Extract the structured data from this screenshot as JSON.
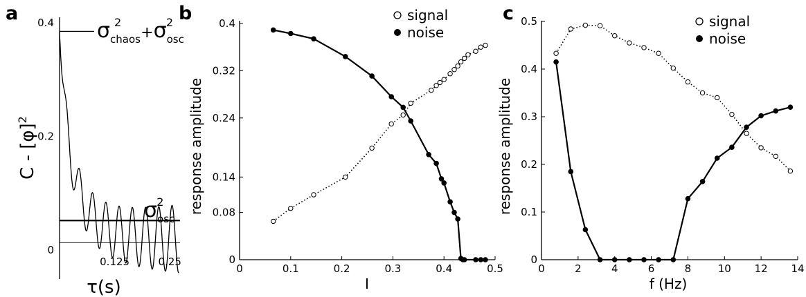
{
  "chart_data": [
    {
      "type": "line",
      "panel": "a",
      "ylabel": "C - [φ]",
      "ylabel_sup": "2",
      "xlabel": "τ(s)",
      "xlim": [
        0,
        0.27
      ],
      "ylim": [
        -0.06,
        0.4
      ],
      "xticks": [
        0.125,
        0.25
      ],
      "xtick_labels": [
        "0.125",
        "0.25"
      ],
      "yticks": [
        0,
        0.2,
        0.4
      ],
      "ytick_labels": [
        "0",
        "0.2",
        "0.4"
      ],
      "annotations": {
        "top": {
          "sigma": "σ",
          "sub1": "chaos",
          "sup1": "2",
          "plus": "+",
          "sub2": "osc",
          "sup2": "2"
        },
        "bottom": {
          "sigma": "σ",
          "sub": "osc",
          "sup": "2"
        }
      },
      "ref_lines": [
        0.385,
        0.052,
        0.013
      ],
      "trace": {
        "start": 0.385,
        "asymptote": 0.013,
        "decay_amplitude": 0.18,
        "decay_tau_s": 0.05,
        "osc_amplitude": 0.06,
        "osc_period_s": 0.03,
        "x_end": 0.27
      }
    },
    {
      "type": "line",
      "panel": "b",
      "xlabel": "I",
      "ylabel": "response amplitude",
      "xlim": [
        0,
        0.5
      ],
      "ylim": [
        0,
        0.4
      ],
      "xticks": [
        0,
        0.1,
        0.2,
        0.3,
        0.4,
        0.5
      ],
      "xtick_labels": [
        "0",
        "0.1",
        "0.2",
        "0.3",
        "0.4",
        "0.5"
      ],
      "yticks": [
        0,
        0.08,
        0.14,
        0.24,
        0.32,
        0.4
      ],
      "ytick_labels": [
        "0",
        "0.08",
        "0.14",
        "0.24",
        "0.32",
        "0.4"
      ],
      "legend": [
        "signal",
        "noise"
      ],
      "legend_position": "top-right",
      "series": [
        {
          "name": "signal",
          "style": "dotted",
          "marker": "open",
          "x": [
            0.066,
            0.1,
            0.145,
            0.207,
            0.259,
            0.297,
            0.32,
            0.335,
            0.375,
            0.385,
            0.392,
            0.4,
            0.412,
            0.42,
            0.427,
            0.433,
            0.44,
            0.447,
            0.462,
            0.472,
            0.481
          ],
          "y": [
            0.065,
            0.087,
            0.11,
            0.14,
            0.189,
            0.23,
            0.245,
            0.265,
            0.287,
            0.295,
            0.3,
            0.305,
            0.315,
            0.322,
            0.328,
            0.335,
            0.341,
            0.347,
            0.353,
            0.36,
            0.363
          ]
        },
        {
          "name": "noise",
          "style": "solid",
          "marker": "filled",
          "x": [
            0.066,
            0.1,
            0.145,
            0.207,
            0.259,
            0.297,
            0.32,
            0.335,
            0.37,
            0.385,
            0.395,
            0.4,
            0.412,
            0.42,
            0.427,
            0.433,
            0.437,
            0.44,
            0.462,
            0.472,
            0.481
          ],
          "y": [
            0.389,
            0.383,
            0.374,
            0.344,
            0.311,
            0.276,
            0.258,
            0.235,
            0.178,
            0.163,
            0.137,
            0.13,
            0.098,
            0.08,
            0.069,
            0.002,
            0.0,
            0.0,
            0.0,
            0.0,
            0.0
          ]
        }
      ]
    },
    {
      "type": "line",
      "panel": "c",
      "xlabel": "f (Hz)",
      "ylabel": "response amplitude",
      "xlim": [
        0,
        14
      ],
      "ylim": [
        0,
        0.5
      ],
      "xticks": [
        0,
        2,
        4,
        6,
        8,
        10,
        12,
        14
      ],
      "xtick_labels": [
        "0",
        "2",
        "4",
        "6",
        "8",
        "10",
        "12",
        "14"
      ],
      "yticks": [
        0,
        0.1,
        0.2,
        0.3,
        0.4,
        0.5
      ],
      "ytick_labels": [
        "0",
        "0.1",
        "0.2",
        "0.3",
        "0.4",
        "0.5"
      ],
      "legend": [
        "signal",
        "noise"
      ],
      "legend_position": "top-right",
      "series": [
        {
          "name": "signal",
          "style": "dotted",
          "marker": "open",
          "x": [
            0.8,
            1.6,
            2.4,
            3.2,
            4.0,
            4.8,
            5.6,
            6.4,
            7.2,
            8.0,
            8.8,
            9.6,
            10.4,
            11.2,
            12.0,
            12.8,
            13.6
          ],
          "y": [
            0.433,
            0.484,
            0.492,
            0.491,
            0.47,
            0.455,
            0.445,
            0.433,
            0.402,
            0.373,
            0.35,
            0.34,
            0.305,
            0.265,
            0.235,
            0.217,
            0.186
          ]
        },
        {
          "name": "noise",
          "style": "solid",
          "marker": "filled",
          "x": [
            0.8,
            1.6,
            2.4,
            3.2,
            4.0,
            4.8,
            5.6,
            6.4,
            7.2,
            8.0,
            8.8,
            9.6,
            10.4,
            11.2,
            12.0,
            12.8,
            13.6
          ],
          "y": [
            0.415,
            0.185,
            0.063,
            0.0,
            0.0,
            0.0,
            0.0,
            0.0,
            0.0,
            0.128,
            0.164,
            0.213,
            0.236,
            0.278,
            0.302,
            0.312,
            0.32
          ]
        }
      ]
    }
  ],
  "panel_labels": [
    "a",
    "b",
    "c"
  ]
}
